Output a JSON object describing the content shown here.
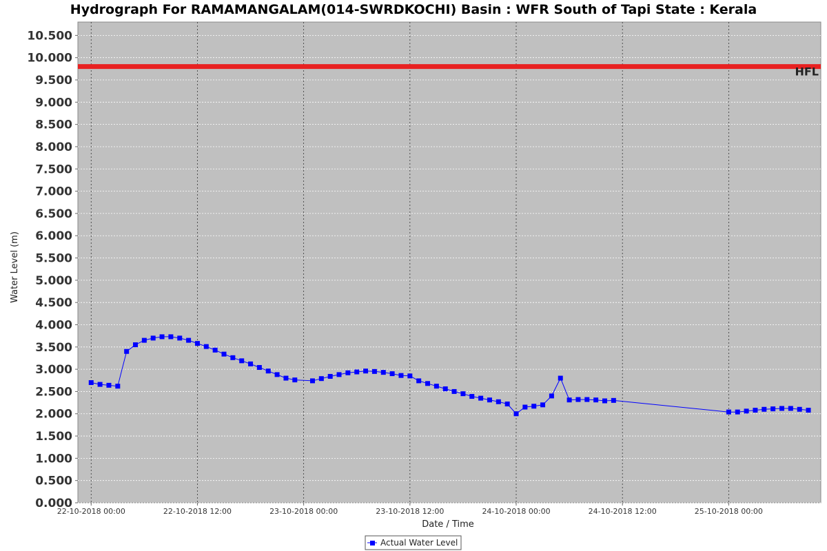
{
  "chart_data": {
    "type": "line",
    "title": "Hydrograph For RAMAMANGALAM(014-SWRDKOCHI) Basin : WFR South of Tapi State : Kerala",
    "xlabel": "Date / Time",
    "ylabel": "Water Level (m)",
    "ylim": [
      0,
      10.8
    ],
    "y_ticks": [
      "0.000",
      "0.500",
      "1.000",
      "1.500",
      "2.000",
      "2.500",
      "3.000",
      "3.500",
      "4.000",
      "4.500",
      "5.000",
      "5.500",
      "6.000",
      "6.500",
      "7.000",
      "7.500",
      "8.000",
      "8.500",
      "9.000",
      "9.500",
      "10.000",
      "10.500"
    ],
    "x_ticks": [
      {
        "label": "22-10-2018 00:00",
        "hour": 0
      },
      {
        "label": "22-10-2018 12:00",
        "hour": 12
      },
      {
        "label": "23-10-2018 00:00",
        "hour": 24
      },
      {
        "label": "23-10-2018 12:00",
        "hour": 36
      },
      {
        "label": "24-10-2018 00:00",
        "hour": 48
      },
      {
        "label": "24-10-2018 12:00",
        "hour": 60
      },
      {
        "label": "25-10-2018 00:00",
        "hour": 72
      }
    ],
    "x_hours_range": [
      -1.5,
      82.4
    ],
    "grid": true,
    "legend_position": "bottom-center",
    "reference_line": {
      "label": "HFL",
      "value": 9.8,
      "color": "#e82020"
    },
    "series": [
      {
        "name": "Actual Water Level",
        "color": "#0000ff",
        "marker": "square",
        "x_hours": [
          0,
          1,
          2,
          3,
          4,
          5,
          6,
          7,
          8,
          9,
          10,
          11,
          12,
          13,
          14,
          15,
          16,
          17,
          18,
          19,
          20,
          21,
          22,
          23,
          25,
          26,
          27,
          28,
          29,
          30,
          31,
          32,
          33,
          34,
          35,
          36,
          37,
          38,
          39,
          40,
          41,
          42,
          43,
          44,
          45,
          46,
          47,
          48,
          49,
          50,
          51,
          52,
          53,
          54,
          55,
          56,
          57,
          58,
          59,
          72,
          73,
          74,
          75,
          76,
          77,
          78,
          79,
          80,
          81
        ],
        "values": [
          2.7,
          2.66,
          2.64,
          2.62,
          3.4,
          3.55,
          3.65,
          3.7,
          3.73,
          3.73,
          3.7,
          3.65,
          3.58,
          3.51,
          3.43,
          3.34,
          3.26,
          3.19,
          3.12,
          3.04,
          2.96,
          2.88,
          2.8,
          2.76,
          2.74,
          2.79,
          2.84,
          2.88,
          2.92,
          2.94,
          2.96,
          2.95,
          2.93,
          2.9,
          2.86,
          2.85,
          2.74,
          2.68,
          2.62,
          2.56,
          2.5,
          2.45,
          2.39,
          2.35,
          2.31,
          2.27,
          2.22,
          2.0,
          2.15,
          2.17,
          2.2,
          2.4,
          2.8,
          2.31,
          2.32,
          2.32,
          2.31,
          2.29,
          2.3,
          2.04,
          2.04,
          2.06,
          2.08,
          2.1,
          2.11,
          2.12,
          2.12,
          2.1,
          2.08
        ]
      }
    ]
  }
}
